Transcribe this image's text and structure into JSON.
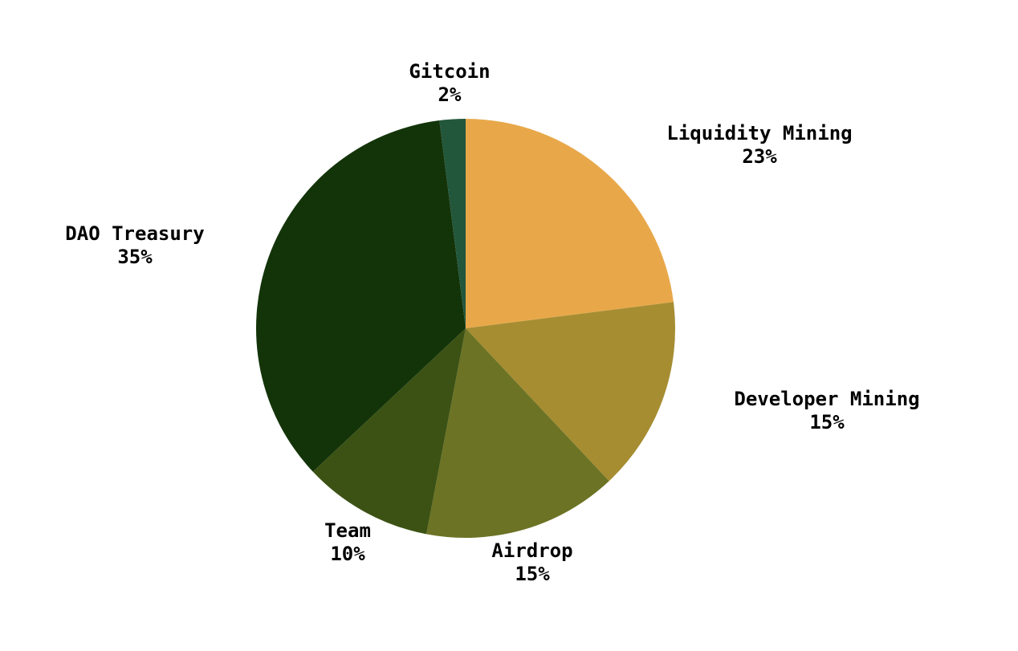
{
  "chart_data": {
    "type": "pie",
    "title": "",
    "start_angle": "top",
    "direction": "clockwise",
    "slices": [
      {
        "label": "Liquidity Mining",
        "value": 23,
        "value_label": "23%",
        "color": "#E8A84A"
      },
      {
        "label": "Developer Mining",
        "value": 15,
        "value_label": "15%",
        "color": "#A68D32"
      },
      {
        "label": "Airdrop",
        "value": 15,
        "value_label": "15%",
        "color": "#6C7324"
      },
      {
        "label": "Team",
        "value": 10,
        "value_label": "10%",
        "color": "#3C5214"
      },
      {
        "label": "DAO Treasury",
        "value": 35,
        "value_label": "35%",
        "color": "#133409"
      },
      {
        "label": "Gitcoin",
        "value": 2,
        "value_label": "2%",
        "color": "#23573C"
      }
    ]
  }
}
